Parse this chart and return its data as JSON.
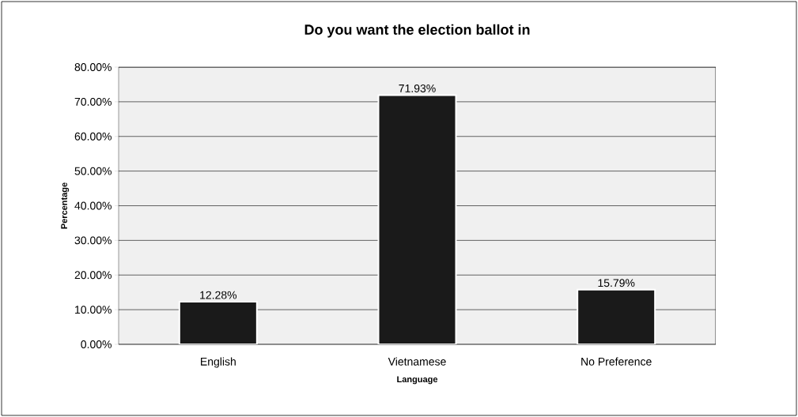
{
  "chart_data": {
    "type": "bar",
    "title": "Do you want the election ballot in",
    "xlabel": "Language",
    "ylabel": "Percentage",
    "categories": [
      "English",
      "Vietnamese",
      "No Preference"
    ],
    "values": [
      12.28,
      71.93,
      15.79
    ],
    "value_labels": [
      "12.28%",
      "71.93%",
      "15.79%"
    ],
    "color": "#1a1a1a",
    "ylim": [
      0,
      80
    ],
    "yticks": [
      {
        "value": 0,
        "label": "0.00%"
      },
      {
        "value": 10,
        "label": "10.00%"
      },
      {
        "value": 20,
        "label": "20.00%"
      },
      {
        "value": 30,
        "label": "30.00%"
      },
      {
        "value": 40,
        "label": "40.00%"
      },
      {
        "value": 50,
        "label": "50.00%"
      },
      {
        "value": 60,
        "label": "60.00%"
      },
      {
        "value": 70,
        "label": "70.00%"
      },
      {
        "value": 80,
        "label": "80.00%"
      }
    ],
    "grid": "y"
  }
}
